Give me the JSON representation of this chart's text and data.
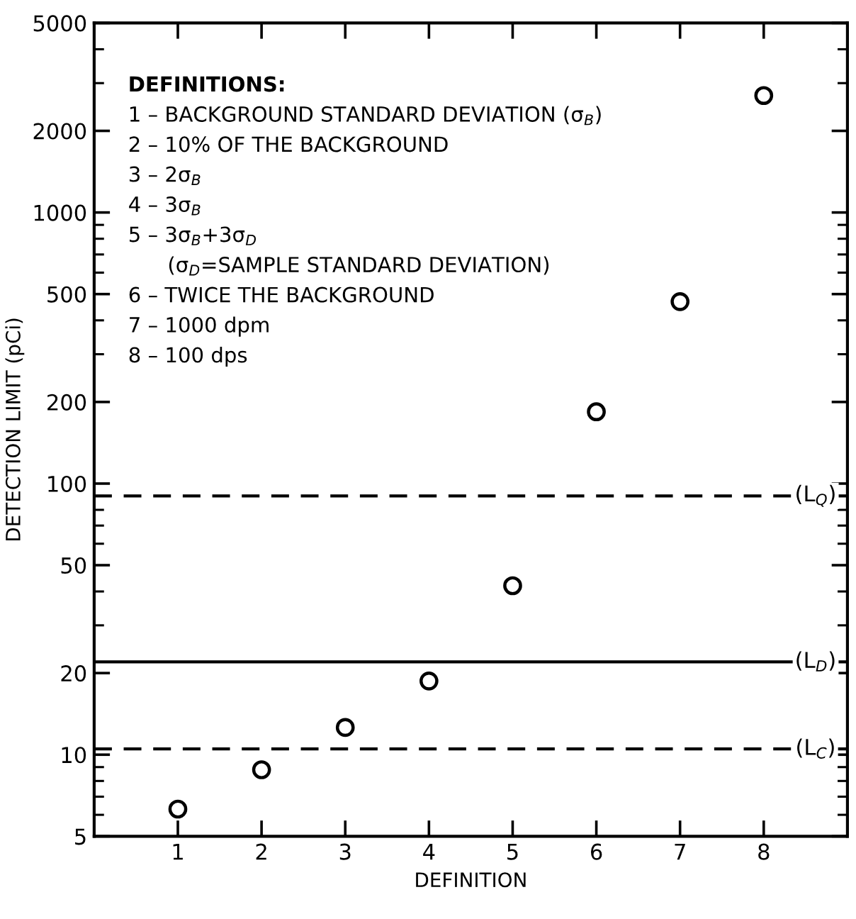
{
  "chart_data": {
    "type": "scatter",
    "xlabel": "DEFINITION",
    "ylabel": "DETECTION LIMIT (pCi)",
    "x": [
      1,
      2,
      3,
      4,
      5,
      6,
      7,
      8
    ],
    "series": [
      {
        "color": "#000000",
        "values": [
          6.3,
          8.8,
          12.6,
          18.7,
          42,
          184,
          469,
          2700
        ]
      }
    ],
    "marker": "circle",
    "log": "y",
    "grid": false,
    "legend": false,
    "xlim": [
      0,
      9
    ],
    "xticks": [
      1,
      2,
      3,
      4,
      5,
      6,
      7,
      8
    ],
    "ylim": [
      5,
      5000
    ],
    "yticks": [
      5,
      10,
      20,
      50,
      100,
      200,
      500,
      1000,
      2000,
      5000
    ],
    "ref_lines": [
      {
        "axis": "y",
        "value": 90,
        "label": "(L$_{Q}$)",
        "line_style": "dashed",
        "color": "#000000"
      },
      {
        "axis": "y",
        "value": 22,
        "label": "(L$_{D}$)",
        "line_style": "solid",
        "color": "#000000"
      },
      {
        "axis": "y",
        "value": 10.5,
        "label": "(L$_{C}$)",
        "line_style": "dashed",
        "color": "#000000"
      }
    ],
    "annotations": [
      "DEFINITIONS:",
      "1 – BACKGROUND STANDARD DEVIATION (σ$_{B}$)",
      "2 – 10% OF THE BACKGROUND",
      "3 – 2σ$_{B}$",
      "4 – 3σ$_{B}$",
      "5 – 3σ$_{B}$+3σ$_{D}$",
      "      (σ$_{D}$=SAMPLE STANDARD DEVIATION)",
      "6 – TWICE THE BACKGROUND",
      "7 – 1000 dpm",
      "8 – 100 dps"
    ]
  }
}
